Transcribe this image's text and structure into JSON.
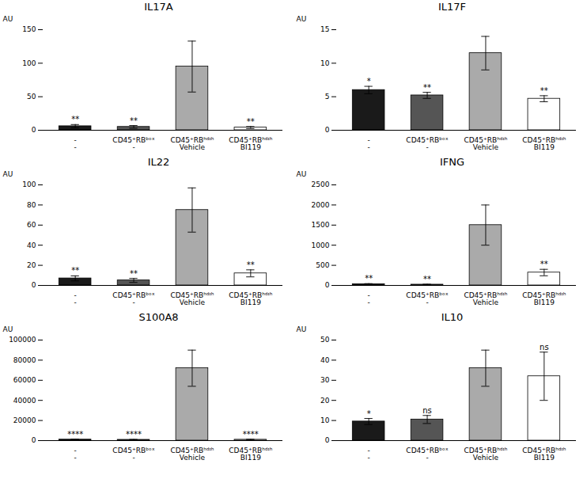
{
  "chart_data": [
    {
      "type": "bar",
      "title": "IL17A",
      "ylabel": "AU",
      "categories": [
        "-\n-",
        "CD45⁺RBᵇᵒˣ\n-",
        "CD45⁺RBʰᵈᶦʰ\nVehicle",
        "CD45⁺RBʰᵈᶦʰ\nBI119"
      ],
      "values": [
        6,
        5,
        95,
        4
      ],
      "errors": [
        2.5,
        2.0,
        38,
        1.5
      ],
      "colors": [
        "#1a1a1a",
        "#555555",
        "#aaaaaa",
        "#ffffff"
      ],
      "annotations": [
        "**",
        "**",
        null,
        "**"
      ],
      "ylim": [
        0,
        150
      ],
      "yticks": [
        0,
        50,
        100,
        150
      ],
      "grid": false
    },
    {
      "type": "bar",
      "title": "IL17F",
      "ylabel": "AU",
      "categories": [
        "-\n-",
        "CD45⁺RBᵇᵒˣ\n-",
        "CD45⁺RBʰᵈᶦʰ\nVehicle",
        "CD45⁺RBʰᵈᶦʰ\nBI119"
      ],
      "values": [
        6.0,
        5.2,
        11.5,
        4.7
      ],
      "errors": [
        0.55,
        0.45,
        2.5,
        0.45
      ],
      "colors": [
        "#1a1a1a",
        "#555555",
        "#aaaaaa",
        "#ffffff"
      ],
      "annotations": [
        "*",
        "**",
        null,
        "**"
      ],
      "ylim": [
        0,
        15
      ],
      "yticks": [
        0,
        5,
        10,
        15
      ],
      "grid": false
    },
    {
      "type": "bar",
      "title": "IL22",
      "ylabel": "AU",
      "categories": [
        "-\n-",
        "CD45⁺RBᵇᵒˣ\n-",
        "CD45⁺RBʰᵈᶦʰ\nVehicle",
        "CD45⁺RBʰᵈᶦʰ\nBI119"
      ],
      "values": [
        7,
        5,
        75,
        12
      ],
      "errors": [
        2.5,
        2.0,
        22,
        3.5
      ],
      "colors": [
        "#1a1a1a",
        "#555555",
        "#aaaaaa",
        "#ffffff"
      ],
      "annotations": [
        "**",
        "**",
        null,
        "**"
      ],
      "ylim": [
        0,
        100
      ],
      "yticks": [
        0,
        20,
        40,
        60,
        80,
        100
      ],
      "grid": false
    },
    {
      "type": "bar",
      "title": "IFNG",
      "ylabel": "AU",
      "categories": [
        "-\n-",
        "CD45⁺RBᵇᵒˣ\n-",
        "CD45⁺RBʰᵈᶦʰ\nVehicle",
        "CD45⁺RBʰᵈᶦʰ\nBI119"
      ],
      "values": [
        30,
        20,
        1500,
        320
      ],
      "errors": [
        15,
        10,
        500,
        80
      ],
      "colors": [
        "#1a1a1a",
        "#555555",
        "#aaaaaa",
        "#ffffff"
      ],
      "annotations": [
        "**",
        "**",
        null,
        "**"
      ],
      "ylim": [
        0,
        2500
      ],
      "yticks": [
        0,
        500,
        1000,
        1500,
        2000,
        2500
      ],
      "grid": false
    },
    {
      "type": "bar",
      "title": "S100A8",
      "ylabel": "AU",
      "categories": [
        "-\n-",
        "CD45⁺RBᵇᵒˣ\n-",
        "CD45⁺RBʰᵈᶦʰ\nVehicle",
        "CD45⁺RBʰᵈᶦʰ\nBI119"
      ],
      "values": [
        1000,
        800,
        72000,
        900
      ],
      "errors": [
        500,
        400,
        18000,
        450
      ],
      "colors": [
        "#1a1a1a",
        "#555555",
        "#aaaaaa",
        "#ffffff"
      ],
      "annotations": [
        "****",
        "****",
        null,
        "****"
      ],
      "ylim": [
        0,
        100000
      ],
      "yticks": [
        0,
        20000,
        40000,
        60000,
        80000,
        100000
      ],
      "grid": false
    },
    {
      "type": "bar",
      "title": "IL10",
      "ylabel": "AU",
      "categories": [
        "-\n-",
        "CD45⁺RBᵇᵒˣ\n-",
        "CD45⁺RBʰᵈᶦʰ\nVehicle",
        "CD45⁺RBʰᵈᶦʰ\nBI119"
      ],
      "values": [
        9.5,
        10.5,
        36,
        32
      ],
      "errors": [
        1.5,
        2.0,
        9.0,
        12
      ],
      "colors": [
        "#1a1a1a",
        "#555555",
        "#aaaaaa",
        "#ffffff"
      ],
      "annotations": [
        "*",
        "ns",
        null,
        "ns"
      ],
      "ylim": [
        0,
        50
      ],
      "yticks": [
        0,
        10,
        20,
        30,
        40,
        50
      ],
      "grid": false
    }
  ]
}
